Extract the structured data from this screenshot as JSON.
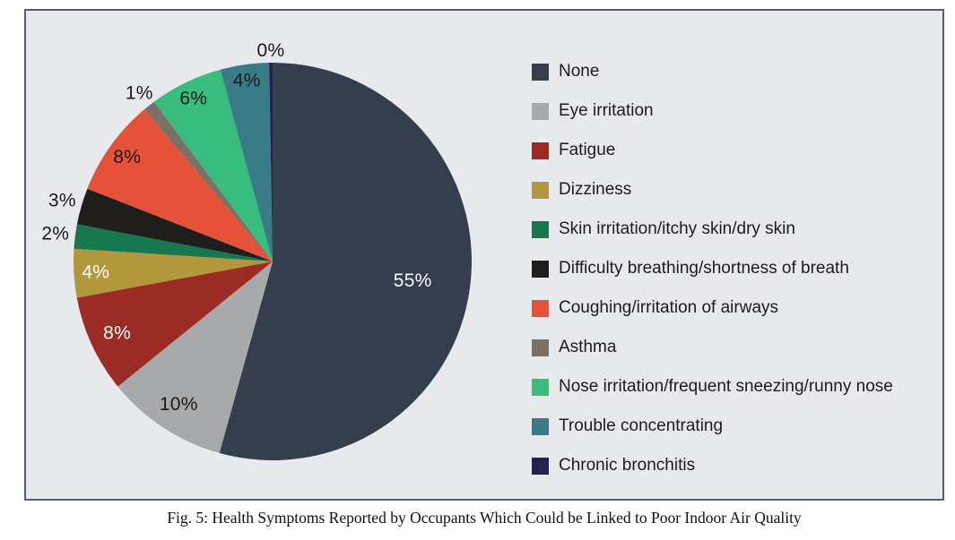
{
  "figure": {
    "caption": "Fig. 5: Health Symptoms Reported by Occupants Which Could be Linked to Poor Indoor Air Quality"
  },
  "panel": {
    "background": "#e8e9ed",
    "border_color": "#58606e"
  },
  "chart_data": {
    "type": "pie",
    "title": "",
    "legend_position": "right",
    "start_angle_deg": 0,
    "direction": "clockwise",
    "total_pct": 101,
    "slices": [
      {
        "label": "None",
        "value_pct": 55,
        "display": "55%",
        "color": "#343e4e",
        "label_color": "#ffffff",
        "label_inside": true,
        "label_radius_frac": 0.71
      },
      {
        "label": "Eye irritation",
        "value_pct": 10,
        "display": "10%",
        "color": "#a8a9aa",
        "label_color": "#1a1a1a",
        "label_inside": true,
        "label_radius_frac": 0.86
      },
      {
        "label": "Fatigue",
        "value_pct": 8,
        "display": "8%",
        "color": "#9c2b25",
        "label_color": "#ffffff",
        "label_inside": true,
        "label_radius_frac": 0.86
      },
      {
        "label": "Dizziness",
        "value_pct": 4,
        "display": "4%",
        "color": "#b2983d",
        "label_color": "#ffffff",
        "label_inside": true,
        "label_radius_frac": 0.89
      },
      {
        "label": "Skin irritation/itchy skin/dry skin",
        "value_pct": 2,
        "display": "2%",
        "color": "#17774e",
        "label_color": "#1a1a1a",
        "label_inside": false,
        "label_radius_frac": 1.1
      },
      {
        "label": "Difficulty breathing/shortness of breath",
        "value_pct": 3,
        "display": "3%",
        "color": "#1f1e1c",
        "label_color": "#1a1a1a",
        "label_inside": false,
        "label_radius_frac": 1.1
      },
      {
        "label": "Coughing/irritation of airways",
        "value_pct": 8,
        "display": "8%",
        "color": "#e65139",
        "label_color": "#1a1a1a",
        "label_inside": true,
        "label_radius_frac": 0.9
      },
      {
        "label": "Asthma",
        "value_pct": 1,
        "display": "1%",
        "color": "#7b6f66",
        "label_color": "#1a1a1a",
        "label_inside": false,
        "label_radius_frac": 1.08
      },
      {
        "label": "Nose irritation/frequent sneezing/runny nose",
        "value_pct": 6,
        "display": "6%",
        "color": "#38bd7e",
        "label_color": "#1a1a1a",
        "label_inside": true,
        "label_radius_frac": 0.91
      },
      {
        "label": "Trouble concentrating",
        "value_pct": 4,
        "display": "4%",
        "color": "#3a7b88",
        "label_color": "#1a1a1a",
        "label_inside": true,
        "label_radius_frac": 0.92
      },
      {
        "label": "Chronic bronchitis",
        "value_pct": 0,
        "display": "0%",
        "color": "#242153",
        "label_color": "#1a1a1a",
        "label_inside": false,
        "label_radius_frac": 1.06
      }
    ]
  }
}
